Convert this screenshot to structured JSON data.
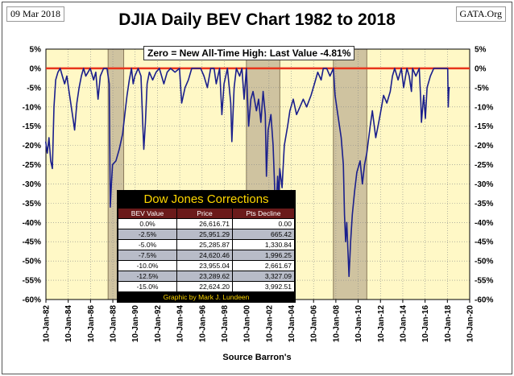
{
  "header": {
    "date": "09 Mar 2018",
    "source_tag": "GATA.Org",
    "title": "DJIA Daily BEV Chart 1982 to 2018"
  },
  "annotation": "Zero = New All-Time High: Last Value  -4.81%",
  "xlabel": "Source Barron's",
  "colors": {
    "plot_bg": "#fff8c6",
    "shade": "#cfc3a0",
    "line": "#1a1f8c",
    "zero_line": "#e8341c"
  },
  "chart_data": {
    "type": "line",
    "title": "DJIA Daily BEV Chart 1982 to 2018",
    "xlabel": "Source Barron's",
    "ylabel": "",
    "ylim": [
      -60,
      5
    ],
    "xlim": [
      "1982-01-10",
      "2020-01-10"
    ],
    "grid": true,
    "y_ticks": [
      "5%",
      "0%",
      "-5%",
      "-10%",
      "-15%",
      "-20%",
      "-25%",
      "-30%",
      "-35%",
      "-40%",
      "-45%",
      "-50%",
      "-55%",
      "-60%"
    ],
    "x_ticks": [
      "10-Jan-82",
      "10-Jan-84",
      "10-Jan-86",
      "10-Jan-88",
      "10-Jan-90",
      "10-Jan-92",
      "10-Jan-94",
      "10-Jan-96",
      "10-Jan-98",
      "10-Jan-00",
      "10-Jan-02",
      "10-Jan-04",
      "10-Jan-06",
      "10-Jan-08",
      "10-Jan-10",
      "10-Jan-12",
      "10-Jan-14",
      "10-Jan-16",
      "10-Jan-18",
      "10-Jan-20"
    ],
    "shaded_periods": [
      {
        "start": 1987.6,
        "end": 1989.0
      },
      {
        "start": 2000.0,
        "end": 2003.0
      },
      {
        "start": 2007.8,
        "end": 2010.8
      }
    ],
    "series": [
      {
        "values": [
          [
            1982.0,
            -19
          ],
          [
            1982.15,
            -22
          ],
          [
            1982.3,
            -18
          ],
          [
            1982.45,
            -24
          ],
          [
            1982.6,
            -26
          ],
          [
            1982.75,
            -10
          ],
          [
            1982.9,
            -3
          ],
          [
            1983.1,
            -1
          ],
          [
            1983.3,
            0
          ],
          [
            1983.5,
            -2
          ],
          [
            1983.7,
            -4
          ],
          [
            1983.9,
            -2
          ],
          [
            1984.1,
            -6
          ],
          [
            1984.3,
            -10
          ],
          [
            1984.5,
            -14
          ],
          [
            1984.6,
            -16
          ],
          [
            1984.8,
            -9
          ],
          [
            1985.0,
            -5
          ],
          [
            1985.2,
            -2
          ],
          [
            1985.4,
            0
          ],
          [
            1985.6,
            -2
          ],
          [
            1985.8,
            -1
          ],
          [
            1986.0,
            0
          ],
          [
            1986.3,
            -3
          ],
          [
            1986.5,
            -1
          ],
          [
            1986.7,
            -8
          ],
          [
            1986.9,
            -2
          ],
          [
            1987.2,
            0
          ],
          [
            1987.5,
            0
          ],
          [
            1987.7,
            -4
          ],
          [
            1987.8,
            -36
          ],
          [
            1987.9,
            -30
          ],
          [
            1988.0,
            -25
          ],
          [
            1988.3,
            -24
          ],
          [
            1988.6,
            -21
          ],
          [
            1988.9,
            -17
          ],
          [
            1989.1,
            -12
          ],
          [
            1989.3,
            -7
          ],
          [
            1989.5,
            -3
          ],
          [
            1989.7,
            0
          ],
          [
            1989.85,
            -4
          ],
          [
            1990.0,
            -2
          ],
          [
            1990.3,
            0
          ],
          [
            1990.55,
            -2
          ],
          [
            1990.7,
            -14
          ],
          [
            1990.8,
            -21
          ],
          [
            1990.95,
            -14
          ],
          [
            1991.1,
            -4
          ],
          [
            1991.3,
            -1
          ],
          [
            1991.6,
            -3
          ],
          [
            1991.9,
            -1
          ],
          [
            1992.2,
            0
          ],
          [
            1992.6,
            -4
          ],
          [
            1992.9,
            -1
          ],
          [
            1993.2,
            0
          ],
          [
            1993.6,
            -1
          ],
          [
            1994.0,
            0
          ],
          [
            1994.2,
            -9
          ],
          [
            1994.5,
            -5
          ],
          [
            1994.8,
            -3
          ],
          [
            1995.1,
            0
          ],
          [
            1995.5,
            0
          ],
          [
            1995.9,
            0
          ],
          [
            1996.2,
            -2
          ],
          [
            1996.5,
            -5
          ],
          [
            1996.8,
            0
          ],
          [
            1997.1,
            0
          ],
          [
            1997.3,
            -4
          ],
          [
            1997.6,
            0
          ],
          [
            1997.8,
            -12
          ],
          [
            1998.0,
            -4
          ],
          [
            1998.3,
            0
          ],
          [
            1998.6,
            -9
          ],
          [
            1998.7,
            -19
          ],
          [
            1998.9,
            -5
          ],
          [
            1999.1,
            0
          ],
          [
            1999.4,
            -2
          ],
          [
            1999.6,
            0
          ],
          [
            1999.8,
            -8
          ],
          [
            2000.0,
            0
          ],
          [
            2000.2,
            -15
          ],
          [
            2000.4,
            -8
          ],
          [
            2000.6,
            -6
          ],
          [
            2000.9,
            -11
          ],
          [
            2001.1,
            -8
          ],
          [
            2001.3,
            -14
          ],
          [
            2001.5,
            -6
          ],
          [
            2001.7,
            -12
          ],
          [
            2001.8,
            -28
          ],
          [
            2001.95,
            -16
          ],
          [
            2002.2,
            -12
          ],
          [
            2002.4,
            -20
          ],
          [
            2002.55,
            -32
          ],
          [
            2002.65,
            -37
          ],
          [
            2002.8,
            -28
          ],
          [
            2002.9,
            -33
          ],
          [
            2003.0,
            -26
          ],
          [
            2003.2,
            -31
          ],
          [
            2003.4,
            -20
          ],
          [
            2003.7,
            -15
          ],
          [
            2003.9,
            -11
          ],
          [
            2004.2,
            -8
          ],
          [
            2004.5,
            -12
          ],
          [
            2004.8,
            -10
          ],
          [
            2005.1,
            -8
          ],
          [
            2005.4,
            -10
          ],
          [
            2005.8,
            -7
          ],
          [
            2006.1,
            -4
          ],
          [
            2006.4,
            -1
          ],
          [
            2006.7,
            -3
          ],
          [
            2006.9,
            0
          ],
          [
            2007.2,
            0
          ],
          [
            2007.5,
            -2
          ],
          [
            2007.8,
            0
          ],
          [
            2007.95,
            -7
          ],
          [
            2008.2,
            -12
          ],
          [
            2008.5,
            -18
          ],
          [
            2008.7,
            -25
          ],
          [
            2008.8,
            -38
          ],
          [
            2008.9,
            -45
          ],
          [
            2009.0,
            -40
          ],
          [
            2009.1,
            -47
          ],
          [
            2009.2,
            -54
          ],
          [
            2009.35,
            -45
          ],
          [
            2009.5,
            -38
          ],
          [
            2009.7,
            -32
          ],
          [
            2009.9,
            -27
          ],
          [
            2010.2,
            -24
          ],
          [
            2010.4,
            -30
          ],
          [
            2010.6,
            -25
          ],
          [
            2010.8,
            -22
          ],
          [
            2011.1,
            -15
          ],
          [
            2011.3,
            -11
          ],
          [
            2011.6,
            -18
          ],
          [
            2011.8,
            -15
          ],
          [
            2012.0,
            -12
          ],
          [
            2012.3,
            -7
          ],
          [
            2012.6,
            -9
          ],
          [
            2012.9,
            -6
          ],
          [
            2013.1,
            -2
          ],
          [
            2013.3,
            0
          ],
          [
            2013.6,
            -3
          ],
          [
            2013.9,
            0
          ],
          [
            2014.1,
            -5
          ],
          [
            2014.4,
            0
          ],
          [
            2014.6,
            -2
          ],
          [
            2014.8,
            -6
          ],
          [
            2014.9,
            0
          ],
          [
            2015.2,
            -2
          ],
          [
            2015.5,
            0
          ],
          [
            2015.65,
            -9
          ],
          [
            2015.7,
            -14
          ],
          [
            2015.9,
            -7
          ],
          [
            2016.05,
            -13
          ],
          [
            2016.2,
            -5
          ],
          [
            2016.5,
            -2
          ],
          [
            2016.8,
            0
          ],
          [
            2017.1,
            0
          ],
          [
            2017.4,
            0
          ],
          [
            2017.7,
            0
          ],
          [
            2017.9,
            0
          ],
          [
            2018.05,
            0
          ],
          [
            2018.1,
            -10
          ],
          [
            2018.15,
            -6
          ],
          [
            2018.19,
            -4.81
          ]
        ]
      }
    ]
  },
  "table": {
    "title": "Dow Jones Corrections",
    "headers": [
      "BEV Value",
      "Price",
      "Pts Decline"
    ],
    "rows": [
      [
        "0.0%",
        "26,616.71",
        "0.00"
      ],
      [
        "-2.5%",
        "25,951.29",
        "665.42"
      ],
      [
        "-5.0%",
        "25,285.87",
        "1,330.84"
      ],
      [
        "-7.5%",
        "24,620.46",
        "1,996.25"
      ],
      [
        "-10.0%",
        "23,955.04",
        "2,661.67"
      ],
      [
        "-12.5%",
        "23,289.62",
        "3,327.09"
      ],
      [
        "-15.0%",
        "22,624.20",
        "3,992.51"
      ]
    ],
    "credit": "Graphic by Mark J. Lundeen"
  }
}
